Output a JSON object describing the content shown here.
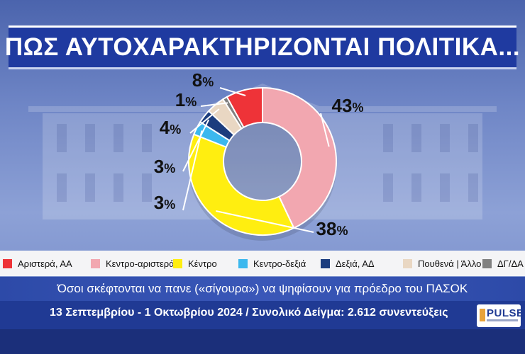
{
  "title": "ΠΩΣ ΑΥΤΟΧΑΡΑΚΤΗΡΙΖΟΝΤΑΙ ΠΟΛΙΤΙΚΑ...",
  "subtitle": "Όσοι σκέφτονται να πανε («σίγουρα») να ψηφίσουν για πρόεδρο του ΠΑΣΟΚ",
  "footer": "13 Σεπτεμβρίου - 1 Οκτωβρίου 2024 / Συνολικό Δείγμα: 2.612 συνεντεύξεις",
  "logo": "PULSE",
  "chart_data": {
    "type": "pie",
    "style": "donut",
    "series": [
      {
        "name": "Κεντρο-αριστερά",
        "value": 43,
        "label": "43",
        "color": "#f2a7b0"
      },
      {
        "name": "Κέντρο",
        "value": 38,
        "label": "38",
        "color": "#ffee10"
      },
      {
        "name": "Κεντρο-δεξιά",
        "value": 3,
        "label": "3",
        "color": "#3cb8ee"
      },
      {
        "name": "Δεξιά, ΑΔ",
        "value": 3,
        "label": "3",
        "color": "#1b3c7e"
      },
      {
        "name": "Πουθενά | Άλλο",
        "value": 4,
        "label": "4",
        "color": "#e9d7c3"
      },
      {
        "name": "ΔΓ/ΔΑ",
        "value": 1,
        "label": "1",
        "color": "#808080"
      },
      {
        "name": "Αριστερά, ΑΑ",
        "value": 8,
        "label": "8",
        "color": "#ee3338"
      }
    ],
    "percent_sign": "%",
    "legend_order": [
      "Αριστερά, ΑΑ",
      "Κεντρο-αριστερά",
      "Κέντρο",
      "Κεντρο-δεξιά",
      "Δεξιά, ΑΔ",
      "Πουθενά | Άλλο",
      "ΔΓ/ΔΑ"
    ],
    "legend": "bottom"
  }
}
